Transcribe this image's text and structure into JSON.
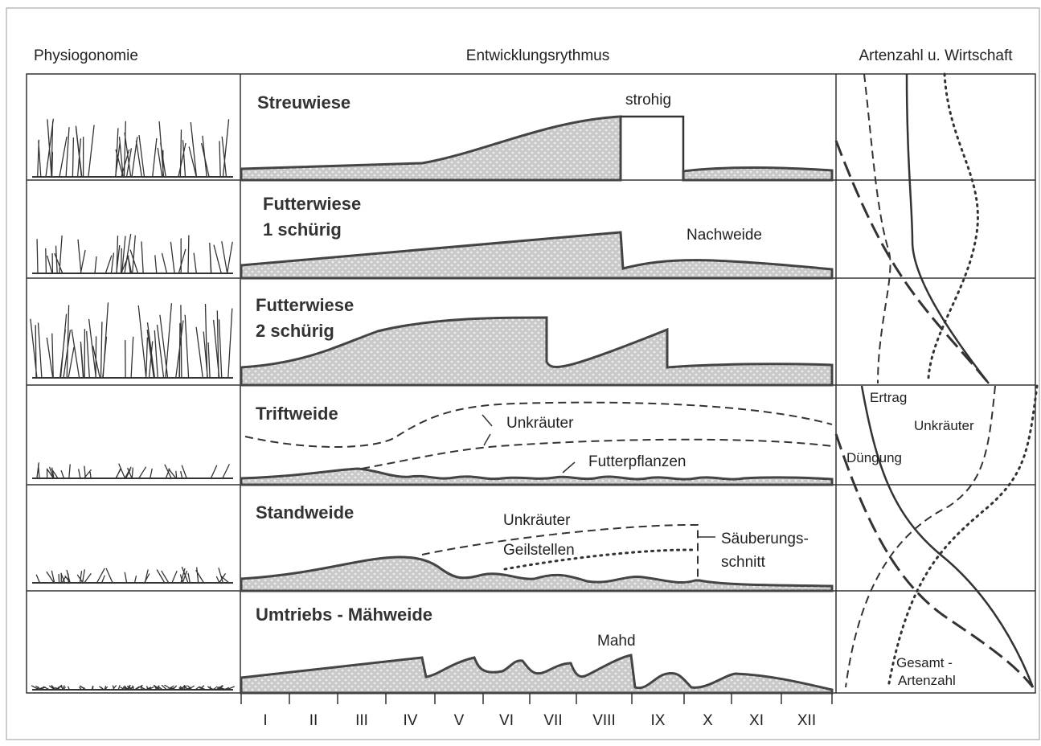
{
  "header": {
    "physiognomy": "Physiogonomie",
    "development": "Entwicklungsrythmus",
    "species": "Artenzahl u. Wirtschaft"
  },
  "rows": [
    {
      "title": [
        "Streuwiese"
      ],
      "labels": [
        "strohig"
      ]
    },
    {
      "title": [
        "Futterwiese",
        "1 schürig"
      ],
      "labels": [
        "Nachweide"
      ]
    },
    {
      "title": [
        "Futterwiese",
        "2 schürig"
      ],
      "labels": []
    },
    {
      "title": [
        "Triftweide"
      ],
      "labels": [
        "Unkräuter",
        "Futterpflanzen"
      ]
    },
    {
      "title": [
        "Standweide"
      ],
      "labels": [
        "Unkräuter",
        "Geilstellen",
        "Säuberungs-",
        "schnitt"
      ]
    },
    {
      "title": [
        "Umtriebs - Mähweide"
      ],
      "labels": [
        "Mahd"
      ]
    }
  ],
  "months": [
    "I",
    "II",
    "III",
    "IV",
    "V",
    "VI",
    "VII",
    "VIII",
    "IX",
    "X",
    "XI",
    "XII"
  ],
  "side_labels": {
    "yield": "Ertrag",
    "weeds": "Unkräuter",
    "fertilizing": "Düngung",
    "total": [
      "Gesamt -",
      "Artenzahl"
    ]
  }
}
